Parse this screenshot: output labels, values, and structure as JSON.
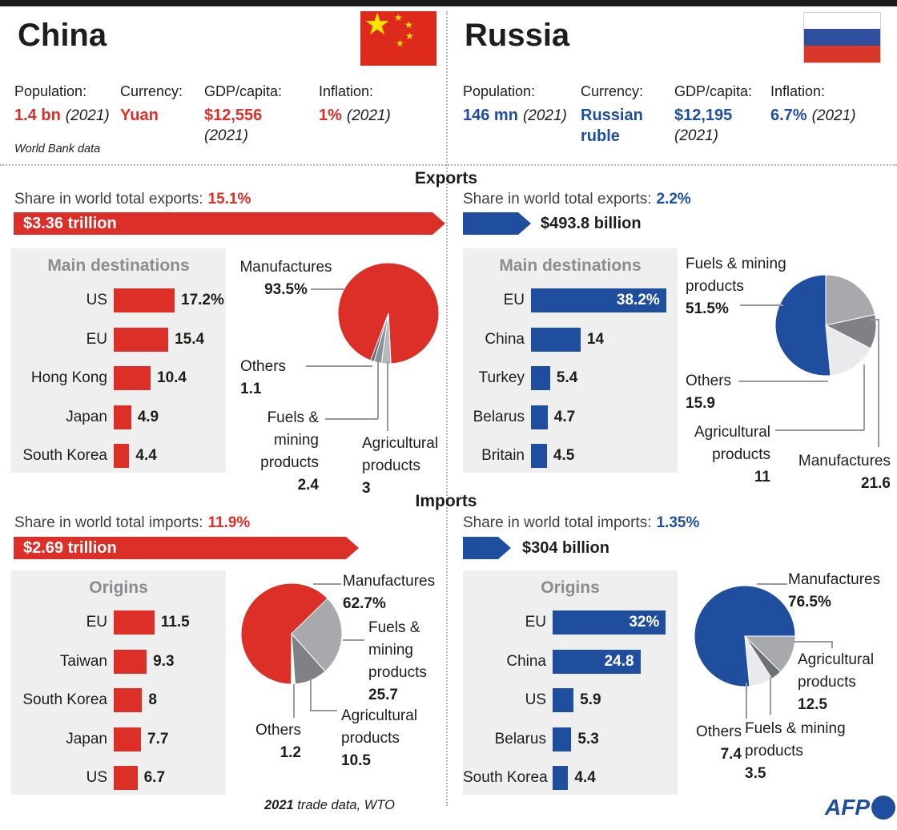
{
  "colors": {
    "red": "#dc2f27",
    "blue": "#1f4e9e",
    "panel_bg": "#efefef",
    "heading_gray": "#8a8d8f",
    "leader_gray": "#97999b"
  },
  "header": {
    "china": {
      "name": "China",
      "stats": [
        {
          "label": "Population:",
          "value": "1.4 bn",
          "suffix": "(2021)"
        },
        {
          "label": "Currency:",
          "value": "Yuan",
          "suffix": ""
        },
        {
          "label": "GDP/capita:",
          "value": "$12,556",
          "suffix": "(2021)"
        },
        {
          "label": "Inflation:",
          "value": "1%",
          "suffix": "(2021)"
        }
      ],
      "source_note": "World Bank data"
    },
    "russia": {
      "name": "Russia",
      "stats": [
        {
          "label": "Population:",
          "value": "146 mn",
          "suffix": "(2021)"
        },
        {
          "label": "Currency:",
          "value": "Russian ruble",
          "suffix": ""
        },
        {
          "label": "GDP/capita:",
          "value": "$12,195",
          "suffix": "(2021)"
        },
        {
          "label": "Inflation:",
          "value": "6.7%",
          "suffix": "(2021)"
        }
      ]
    }
  },
  "sections": {
    "exports": {
      "title": "Exports",
      "china_share_label": "Share in world total exports:",
      "china_share_value": "15.1%",
      "china_total": "$3.36 trillion",
      "russia_share_label": "Share in world total exports:",
      "russia_share_value": "2.2%",
      "russia_total": "$493.8 billion"
    },
    "imports": {
      "title": "Imports",
      "china_share_label": "Share in world total imports:",
      "china_share_value": "11.9%",
      "china_total": "$2.69 trillion",
      "russia_share_label": "Share in world total imports:",
      "russia_share_value": "1.35%",
      "russia_total": "$304 billion"
    }
  },
  "footer": {
    "note_year": "2021",
    "note_rest": " trade data, WTO",
    "logo": "AFP"
  },
  "chart_data": [
    {
      "id": "china-export-destinations",
      "type": "bar",
      "country": "China",
      "flow": "exports",
      "title": "Main destinations",
      "unit": "% of exports",
      "bar_color": "#dc2f27",
      "rows": [
        {
          "label": "US",
          "value": 17.2,
          "value_label": "17.2%"
        },
        {
          "label": "EU",
          "value": 15.4,
          "value_label": "15.4"
        },
        {
          "label": "Hong Kong",
          "value": 10.4,
          "value_label": "10.4"
        },
        {
          "label": "Japan",
          "value": 4.9,
          "value_label": "4.9"
        },
        {
          "label": "South Korea",
          "value": 4.4,
          "value_label": "4.4"
        }
      ]
    },
    {
      "id": "china-export-products",
      "type": "pie",
      "country": "China",
      "flow": "exports",
      "start_angle": 200.6,
      "slices": [
        {
          "label": "Manufactures",
          "value": 93.5,
          "value_label": "93.5%",
          "color": "#dc2f27",
          "display": "Manufactures"
        },
        {
          "label": "Agricultural products",
          "value": 3,
          "value_label": "3",
          "color": "#b3b9bd",
          "display": "Agricultural\nproducts"
        },
        {
          "label": "Fuels & mining products",
          "value": 2.4,
          "value_label": "2.4",
          "color": "#8a9297",
          "display": "Fuels &\nmining\nproducts"
        },
        {
          "label": "Others",
          "value": 1.1,
          "value_label": "1.1",
          "color": "#5f6a71",
          "display": "Others"
        }
      ]
    },
    {
      "id": "russia-export-destinations",
      "type": "bar",
      "country": "Russia",
      "flow": "exports",
      "title": "Main destinations",
      "unit": "% of exports",
      "bar_color": "#1f4e9e",
      "rows": [
        {
          "label": "EU",
          "value": 38.2,
          "value_label": "38.2%",
          "inside": true
        },
        {
          "label": "China",
          "value": 14,
          "value_label": "14"
        },
        {
          "label": "Turkey",
          "value": 5.4,
          "value_label": "5.4"
        },
        {
          "label": "Belarus",
          "value": 4.7,
          "value_label": "4.7"
        },
        {
          "label": "Britain",
          "value": 4.5,
          "value_label": "4.5"
        }
      ]
    },
    {
      "id": "russia-export-products",
      "type": "pie",
      "country": "Russia",
      "flow": "exports",
      "start_angle": 0,
      "slices": [
        {
          "label": "Manufactures",
          "value": 21.6,
          "value_label": "21.6",
          "color": "#a7a9ac",
          "display": "Manufactures"
        },
        {
          "label": "Agricultural products",
          "value": 11,
          "value_label": "11",
          "color": "#7f8184",
          "display": "Agricultural\nproducts"
        },
        {
          "label": "Others",
          "value": 15.9,
          "value_label": "15.9",
          "color": "#e9eaeb",
          "display": "Others"
        },
        {
          "label": "Fuels & mining products",
          "value": 51.5,
          "value_label": "51.5%",
          "color": "#1f4e9e",
          "display": "Fuels & mining\nproducts"
        }
      ]
    },
    {
      "id": "china-import-origins",
      "type": "bar",
      "country": "China",
      "flow": "imports",
      "title": "Origins",
      "unit": "% of imports",
      "bar_color": "#dc2f27",
      "rows": [
        {
          "label": "EU",
          "value": 11.5,
          "value_label": "11.5"
        },
        {
          "label": "Taiwan",
          "value": 9.3,
          "value_label": "9.3"
        },
        {
          "label": "South Korea",
          "value": 8,
          "value_label": "8"
        },
        {
          "label": "Japan",
          "value": 7.7,
          "value_label": "7.7"
        },
        {
          "label": "US",
          "value": 6.7,
          "value_label": "6.7"
        }
      ]
    },
    {
      "id": "china-import-products",
      "type": "pie",
      "country": "China",
      "flow": "imports",
      "start_angle": 180,
      "slices": [
        {
          "label": "Manufactures",
          "value": 62.7,
          "value_label": "62.7%",
          "color": "#dc2f27",
          "display": "Manufactures"
        },
        {
          "label": "Fuels & mining products",
          "value": 25.7,
          "value_label": "25.7",
          "color": "#a7a9ac",
          "display": "Fuels &\nmining\nproducts"
        },
        {
          "label": "Agricultural products",
          "value": 10.5,
          "value_label": "10.5",
          "color": "#7f8184",
          "display": "Agricultural\nproducts"
        },
        {
          "label": "Others",
          "value": 1.2,
          "value_label": "1.2",
          "color": "#ffffff",
          "display": "Others"
        }
      ]
    },
    {
      "id": "russia-import-origins",
      "type": "bar",
      "country": "Russia",
      "flow": "imports",
      "title": "Origins",
      "unit": "% of imports",
      "bar_color": "#1f4e9e",
      "rows": [
        {
          "label": "EU",
          "value": 32,
          "value_label": "32%",
          "inside": true
        },
        {
          "label": "China",
          "value": 24.8,
          "value_label": "24.8",
          "inside": true
        },
        {
          "label": "US",
          "value": 5.9,
          "value_label": "5.9"
        },
        {
          "label": "Belarus",
          "value": 5.3,
          "value_label": "5.3"
        },
        {
          "label": "South Korea",
          "value": 4.4,
          "value_label": "4.4"
        }
      ]
    },
    {
      "id": "russia-import-products",
      "type": "pie",
      "country": "Russia",
      "flow": "imports",
      "start_angle": 174.6,
      "slices": [
        {
          "label": "Manufactures",
          "value": 76.5,
          "value_label": "76.5%",
          "color": "#1f4e9e",
          "display": "Manufactures"
        },
        {
          "label": "Agricultural products",
          "value": 12.5,
          "value_label": "12.5",
          "color": "#a7a9ac",
          "display": "Agricultural\nproducts"
        },
        {
          "label": "Fuels & mining products",
          "value": 3.5,
          "value_label": "3.5",
          "color": "#6e7174",
          "display": "Fuels & mining\nproducts"
        },
        {
          "label": "Others",
          "value": 7.4,
          "value_label": "7.4",
          "color": "#e9eaeb",
          "display": "Others"
        }
      ]
    }
  ]
}
